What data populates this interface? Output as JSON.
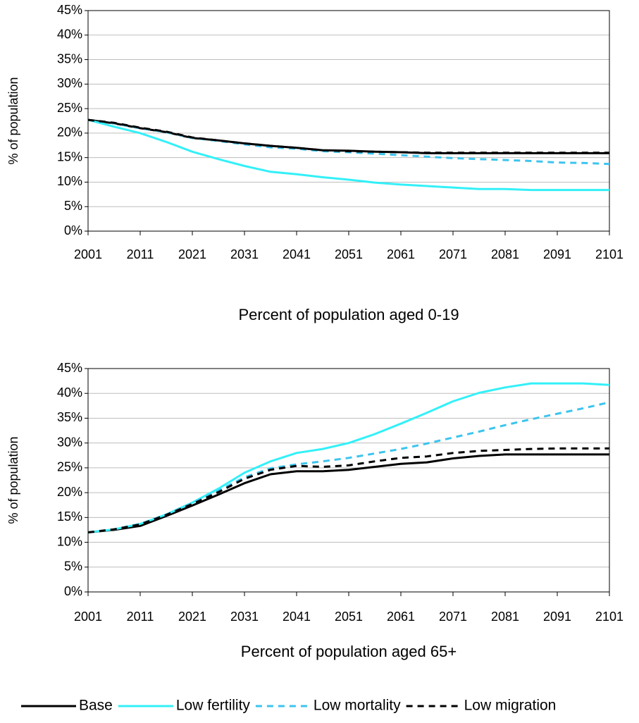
{
  "chart_data": [
    {
      "type": "line",
      "title": "Percent of population aged 0-19",
      "ylabel": "% of population",
      "x": [
        2001,
        2006,
        2011,
        2016,
        2021,
        2026,
        2031,
        2036,
        2041,
        2046,
        2051,
        2056,
        2061,
        2066,
        2071,
        2076,
        2081,
        2086,
        2091,
        2096,
        2101
      ],
      "xlim": [
        2001,
        2101
      ],
      "xticks": [
        2001,
        2011,
        2021,
        2031,
        2041,
        2051,
        2061,
        2071,
        2081,
        2091,
        2101
      ],
      "ylim": [
        0,
        45
      ],
      "yticks": [
        {
          "value": 0,
          "label": "0%"
        },
        {
          "value": 5,
          "label": "5%"
        },
        {
          "value": 10,
          "label": "10%"
        },
        {
          "value": 15,
          "label": "15%"
        },
        {
          "value": 20,
          "label": "20%"
        },
        {
          "value": 25,
          "label": "25%"
        },
        {
          "value": 30,
          "label": "30%"
        },
        {
          "value": 35,
          "label": "35%"
        },
        {
          "value": 40,
          "label": "40%"
        },
        {
          "value": 45,
          "label": "45%"
        }
      ],
      "grid": true,
      "series": [
        {
          "name": "Base",
          "color": "#000000",
          "dashed": false,
          "values": [
            22.7,
            22,
            21,
            20.2,
            19,
            18.5,
            17.9,
            17.4,
            17,
            16.5,
            16.4,
            16.2,
            16.1,
            15.9,
            15.9,
            15.9,
            15.9,
            15.9,
            15.9,
            15.9,
            15.9
          ]
        },
        {
          "name": "Low fertility",
          "color": "#33f0f8",
          "dashed": false,
          "values": [
            22.7,
            21.3,
            20,
            18.2,
            16.2,
            14.7,
            13.3,
            12.1,
            11.6,
            11,
            10.5,
            9.9,
            9.5,
            9.2,
            8.9,
            8.6,
            8.6,
            8.4,
            8.4,
            8.4,
            8.4
          ]
        },
        {
          "name": "Low mortality",
          "color": "#3cc4ee",
          "dashed": true,
          "values": [
            22.7,
            22,
            21,
            20.2,
            19,
            18.4,
            17.7,
            17.1,
            16.8,
            16.3,
            16.1,
            15.8,
            15.5,
            15.2,
            14.9,
            14.7,
            14.5,
            14.3,
            14,
            13.9,
            13.7
          ]
        },
        {
          "name": "Low migration",
          "color": "#000000",
          "dashed": true,
          "values": [
            22.7,
            22.1,
            21.1,
            20.3,
            19.1,
            18.5,
            17.9,
            17.4,
            17,
            16.5,
            16.3,
            16.2,
            16.1,
            16,
            16,
            16,
            16,
            16,
            16,
            16,
            16
          ]
        }
      ]
    },
    {
      "type": "line",
      "title": "Percent of population aged 65+",
      "ylabel": "% of population",
      "x": [
        2001,
        2006,
        2011,
        2016,
        2021,
        2026,
        2031,
        2036,
        2041,
        2046,
        2051,
        2056,
        2061,
        2066,
        2071,
        2076,
        2081,
        2086,
        2091,
        2096,
        2101
      ],
      "xlim": [
        2001,
        2101
      ],
      "xticks": [
        2001,
        2011,
        2021,
        2031,
        2041,
        2051,
        2061,
        2071,
        2081,
        2091,
        2101
      ],
      "ylim": [
        0,
        45
      ],
      "yticks": [
        {
          "value": 0,
          "label": "0%"
        },
        {
          "value": 5,
          "label": "5%"
        },
        {
          "value": 10,
          "label": "10%"
        },
        {
          "value": 15,
          "label": "15%"
        },
        {
          "value": 20,
          "label": "20%"
        },
        {
          "value": 25,
          "label": "25%"
        },
        {
          "value": 30,
          "label": "30%"
        },
        {
          "value": 35,
          "label": "35%"
        },
        {
          "value": 40,
          "label": "40%"
        },
        {
          "value": 45,
          "label": "45%"
        }
      ],
      "grid": true,
      "series": [
        {
          "color": "#000000",
          "dashed": false,
          "values": [
            12,
            12.5,
            13.3,
            15.3,
            17.4,
            19.6,
            21.9,
            23.7,
            24.3,
            24.3,
            24.6,
            25.2,
            25.8,
            26.1,
            26.9,
            27.4,
            27.7,
            27.7,
            27.7,
            27.7,
            27.7
          ]
        },
        {
          "color": "#33f0f8",
          "dashed": false,
          "values": [
            12,
            12.6,
            13.7,
            15.6,
            18,
            20.8,
            24,
            26.3,
            28,
            28.8,
            30,
            31.8,
            33.9,
            36.1,
            38.4,
            40.1,
            41.2,
            42,
            42,
            42,
            41.7
          ]
        },
        {
          "color": "#3cc4ee",
          "dashed": true,
          "values": [
            12,
            12.6,
            13.7,
            15.6,
            17.9,
            20.4,
            23.1,
            24.9,
            25.7,
            26.3,
            27,
            27.9,
            28.8,
            29.9,
            31.1,
            32.3,
            33.6,
            34.8,
            35.9,
            37,
            38.2
          ]
        },
        {
          "color": "#000000",
          "dashed": true,
          "values": [
            12,
            12.6,
            13.6,
            15.5,
            17.7,
            20.1,
            22.8,
            24.6,
            25.4,
            25.2,
            25.5,
            26.3,
            27,
            27.3,
            28,
            28.4,
            28.6,
            28.8,
            28.9,
            28.9,
            28.9
          ]
        }
      ]
    }
  ]
}
